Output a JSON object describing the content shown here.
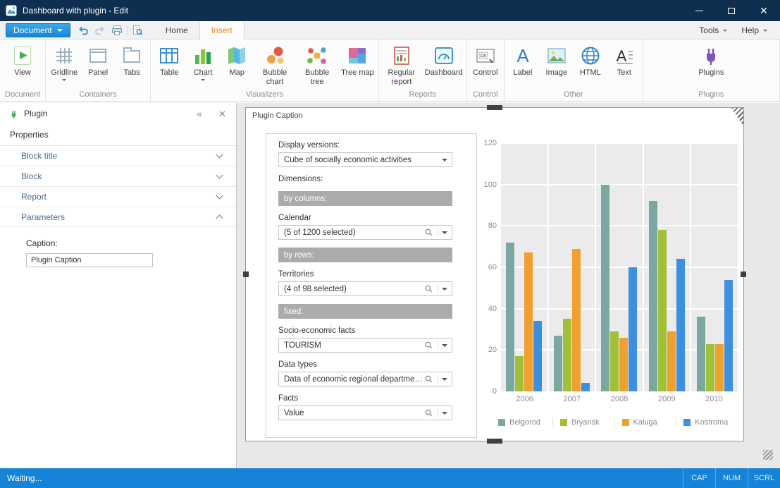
{
  "window": {
    "title": "Dashboard with plugin - Edit"
  },
  "ribbon": {
    "document_button": "Document",
    "tabs": [
      {
        "label": "Home",
        "active": false
      },
      {
        "label": "Insert",
        "active": true
      }
    ],
    "menus": [
      {
        "label": "Tools"
      },
      {
        "label": "Help"
      }
    ],
    "groups": [
      {
        "label": "Document",
        "buttons": [
          {
            "label": "View",
            "icon": "view-icon"
          }
        ]
      },
      {
        "label": "Containers",
        "buttons": [
          {
            "label": "Gridline",
            "icon": "gridline-icon",
            "dropdown": true
          },
          {
            "label": "Panel",
            "icon": "panel-icon"
          },
          {
            "label": "Tabs",
            "icon": "tabs-icon"
          }
        ]
      },
      {
        "label": "Visualizers",
        "buttons": [
          {
            "label": "Table",
            "icon": "table-icon"
          },
          {
            "label": "Chart",
            "icon": "chart-icon",
            "dropdown": true
          },
          {
            "label": "Map",
            "icon": "map-icon"
          },
          {
            "label": "Bubble chart",
            "icon": "bubble-chart-icon"
          },
          {
            "label": "Bubble tree",
            "icon": "bubble-tree-icon"
          },
          {
            "label": "Tree map",
            "icon": "tree-map-icon"
          }
        ]
      },
      {
        "label": "Reports",
        "buttons": [
          {
            "label": "Regular report",
            "icon": "regular-report-icon"
          },
          {
            "label": "Dashboard",
            "icon": "dashboard-icon"
          }
        ]
      },
      {
        "label": "Control",
        "buttons": [
          {
            "label": "Control",
            "icon": "control-icon"
          }
        ]
      },
      {
        "label": "Other",
        "buttons": [
          {
            "label": "Label",
            "icon": "label-icon"
          },
          {
            "label": "Image",
            "icon": "image-icon"
          },
          {
            "label": "HTML",
            "icon": "html-icon"
          },
          {
            "label": "Text",
            "icon": "text-icon"
          }
        ]
      },
      {
        "label": "Plugins",
        "buttons": [
          {
            "label": "Plugins",
            "icon": "plugins-icon"
          }
        ]
      }
    ]
  },
  "side_panel": {
    "title": "Plugin",
    "properties_header": "Properties",
    "sections": [
      {
        "label": "Block title",
        "expanded": false
      },
      {
        "label": "Block",
        "expanded": false
      },
      {
        "label": "Report",
        "expanded": false
      },
      {
        "label": "Parameters",
        "expanded": true
      }
    ],
    "caption_label": "Caption:",
    "caption_value": "Plugin Caption"
  },
  "canvas": {
    "widget_title": "Plugin Caption",
    "form_fields": [
      {
        "type": "label",
        "text": "Display versions:"
      },
      {
        "type": "select",
        "name": "display-versions-select",
        "value": "Cube of socially economic activities",
        "search": false
      },
      {
        "type": "label",
        "text": "Dimensions:"
      },
      {
        "type": "dropzone",
        "name": "by-columns-dropzone",
        "text": "by columns:"
      },
      {
        "type": "label",
        "text": "Calendar"
      },
      {
        "type": "select",
        "name": "calendar-select",
        "value": "(5 of 1200 selected)",
        "search": true
      },
      {
        "type": "dropzone",
        "name": "by-rows-dropzone",
        "text": "by rows:"
      },
      {
        "type": "label",
        "text": "Territories"
      },
      {
        "type": "select",
        "name": "territories-select",
        "value": "(4 of 98 selected)",
        "search": true
      },
      {
        "type": "dropzone",
        "name": "fixed-dropzone",
        "text": "fixed:"
      },
      {
        "type": "label",
        "text": "Socio-economic facts"
      },
      {
        "type": "select",
        "name": "socio-economic-facts-select",
        "value": "TOURISM",
        "search": true
      },
      {
        "type": "label",
        "text": "Data types"
      },
      {
        "type": "select",
        "name": "data-types-select",
        "value": "Data of economic regional departments",
        "search": true
      },
      {
        "type": "label",
        "text": "Facts"
      },
      {
        "type": "select",
        "name": "facts-select",
        "value": "Value",
        "search": true
      }
    ]
  },
  "chart_data": {
    "type": "bar",
    "categories": [
      "2006",
      "2007",
      "2008",
      "2009",
      "2010"
    ],
    "series": [
      {
        "name": "Belgorod",
        "color": "#7aa8a1",
        "values": [
          72,
          27,
          100,
          92,
          36
        ]
      },
      {
        "name": "Bryansk",
        "color": "#a2c037",
        "values": [
          17,
          35,
          29,
          78,
          23
        ]
      },
      {
        "name": "Kaluga",
        "color": "#efa02f",
        "values": [
          67,
          69,
          26,
          29,
          23
        ]
      },
      {
        "name": "Kostroma",
        "color": "#3f8fdf",
        "values": [
          34,
          4,
          60,
          64,
          54
        ]
      }
    ],
    "ylim": [
      0,
      120
    ],
    "yticks": [
      0,
      20,
      40,
      60,
      80,
      100,
      120
    ],
    "grid": true,
    "legend_position": "bottom",
    "plot_background": "#ebebeb"
  },
  "status_bar": {
    "message": "Waiting...",
    "indicators": [
      "CAP",
      "NUM",
      "SCRL"
    ]
  },
  "colors": {
    "active_tab_text": "#e0862c",
    "status_bar": "#1583d7",
    "document_button": "#1f8ad8",
    "title_bar": "#0e2f4f"
  }
}
